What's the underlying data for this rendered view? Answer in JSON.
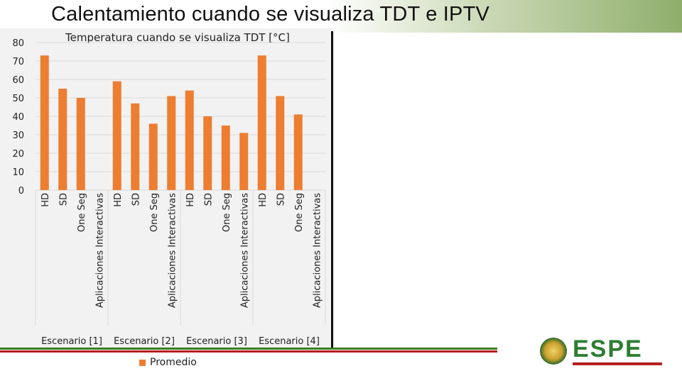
{
  "slide": {
    "title": "Calentamiento cuando se visualiza TDT e IPTV",
    "logo_text": "ESPE"
  },
  "colors": {
    "bar": "#ed7d31",
    "grid": "#d9d9d9",
    "title_band": "#8fae6b"
  },
  "chart_data": {
    "type": "bar",
    "title": "Temperatura cuando se visualiza TDT [°C]",
    "groups": [
      "Escenario [1]",
      "Escenario [2]",
      "Escenario [3]",
      "Escenario [4]"
    ],
    "categories": [
      "HD",
      "SD",
      "One Seg",
      "Aplicaciones Interactivas"
    ],
    "series": [
      {
        "name": "Promedio",
        "values": [
          [
            73,
            55,
            50,
            null
          ],
          [
            59,
            47,
            36,
            51
          ],
          [
            54,
            40,
            35,
            31
          ],
          [
            73,
            51,
            41,
            null
          ]
        ]
      }
    ],
    "yticks": [
      0,
      10,
      20,
      30,
      40,
      50,
      60,
      70,
      80
    ],
    "ylim": [
      0,
      80
    ],
    "grid": true,
    "legend": "bottom"
  }
}
